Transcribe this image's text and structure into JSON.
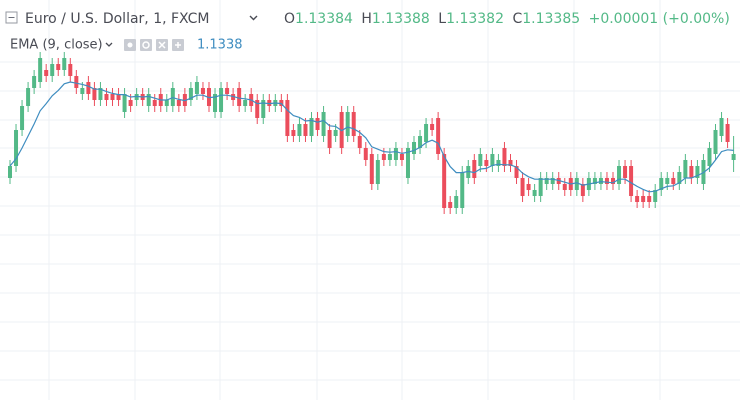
{
  "chart_data": {
    "type": "candlestick",
    "title": "Euro / U.S. Dollar, 1, FXCM",
    "ohlc_labels": [
      "O",
      "H",
      "L",
      "C"
    ],
    "change": "+0.00001 (+0.00%)",
    "up_color": "#53b987",
    "down_color": "#eb4d5c",
    "ylim": [
      1.13344,
      1.13404
    ],
    "open": [
      1.13381,
      1.13383,
      1.13389,
      1.13393,
      1.13396,
      1.13397,
      1.13399,
      1.13398,
      1.134,
      1.13399,
      1.134,
      1.13398,
      1.13395,
      1.13397,
      1.13396,
      1.13394,
      1.13395,
      1.13395,
      1.13395,
      1.13392,
      1.13394,
      1.13394,
      1.13395,
      1.13393,
      1.13394,
      1.13395,
      1.13393,
      1.13393,
      1.13394,
      1.13395,
      1.13394,
      1.13395,
      1.13396,
      1.13396,
      1.13392,
      1.13392,
      1.13396,
      1.13395,
      1.13396,
      1.13393,
      1.13395,
      1.13394,
      1.13391,
      1.13394,
      1.13393,
      1.13394,
      1.13394,
      1.13389,
      1.13388,
      1.1339,
      1.13388,
      1.13391,
      1.13388,
      1.13389,
      1.13388,
      1.13392,
      1.13388,
      1.13392,
      1.13388,
      1.13386,
      1.13385,
      1.1338,
      1.13385,
      1.13384,
      1.13384,
      1.13385,
      1.13381,
      1.13385,
      1.13386,
      1.13387,
      1.1339,
      1.13391,
      1.13385,
      1.13377,
      1.13376,
      1.13376,
      1.13381,
      1.13384,
      1.13383,
      1.13384,
      1.13383,
      1.13383,
      1.13386,
      1.13384,
      1.13383,
      1.13381,
      1.1338,
      1.13378,
      1.13378,
      1.1338,
      1.1338,
      1.13381,
      1.1338,
      1.13381,
      1.13379,
      1.1338,
      1.13379,
      1.1338,
      1.1338,
      1.13381,
      1.13381,
      1.1338,
      1.13383,
      1.13383,
      1.13378,
      1.13378,
      1.13378,
      1.13377,
      1.13379,
      1.1338,
      1.13381,
      1.1338,
      1.13381,
      1.13383,
      1.13381,
      1.1338,
      1.13383,
      1.13385,
      1.13388,
      1.1339,
      1.13384
    ],
    "high": [
      1.13384,
      1.1339,
      1.13394,
      1.13397,
      1.13399,
      1.13402,
      1.134,
      1.13401,
      1.13401,
      1.13402,
      1.13401,
      1.13399,
      1.13397,
      1.13398,
      1.13397,
      1.13397,
      1.13396,
      1.13396,
      1.13396,
      1.13396,
      1.13395,
      1.13396,
      1.13396,
      1.13396,
      1.13395,
      1.13396,
      1.13395,
      1.13397,
      1.13395,
      1.13396,
      1.13397,
      1.13398,
      1.13397,
      1.13397,
      1.13396,
      1.13397,
      1.13397,
      1.13396,
      1.13397,
      1.13395,
      1.13396,
      1.13395,
      1.13395,
      1.13395,
      1.13395,
      1.13395,
      1.13395,
      1.1339,
      1.13391,
      1.13391,
      1.13392,
      1.13392,
      1.13393,
      1.1339,
      1.1339,
      1.13393,
      1.13393,
      1.13393,
      1.13389,
      1.13387,
      1.13386,
      1.13385,
      1.13386,
      1.13386,
      1.13387,
      1.13386,
      1.13387,
      1.13388,
      1.13389,
      1.13391,
      1.13391,
      1.13392,
      1.13386,
      1.13378,
      1.13379,
      1.13383,
      1.13384,
      1.13385,
      1.13386,
      1.13385,
      1.13386,
      1.13385,
      1.13387,
      1.13385,
      1.13384,
      1.13382,
      1.13381,
      1.1338,
      1.13382,
      1.13382,
      1.13382,
      1.13382,
      1.13381,
      1.13382,
      1.13382,
      1.13381,
      1.13382,
      1.13382,
      1.13382,
      1.13382,
      1.13382,
      1.13384,
      1.13384,
      1.13384,
      1.13379,
      1.13379,
      1.13379,
      1.1338,
      1.13382,
      1.13382,
      1.13382,
      1.13383,
      1.13385,
      1.13384,
      1.13384,
      1.13385,
      1.13387,
      1.1339,
      1.13392,
      1.13391,
      1.13388
    ],
    "low": [
      1.1338,
      1.13382,
      1.13388,
      1.13392,
      1.13395,
      1.13396,
      1.13397,
      1.13397,
      1.13398,
      1.13398,
      1.13397,
      1.13395,
      1.13394,
      1.13394,
      1.13393,
      1.13393,
      1.13393,
      1.13393,
      1.13393,
      1.13391,
      1.13392,
      1.13393,
      1.13393,
      1.13392,
      1.13392,
      1.13392,
      1.13392,
      1.13392,
      1.13392,
      1.13392,
      1.13393,
      1.13394,
      1.13394,
      1.13392,
      1.13391,
      1.13391,
      1.13394,
      1.13393,
      1.13392,
      1.13392,
      1.13392,
      1.1339,
      1.1339,
      1.13392,
      1.13392,
      1.13392,
      1.13387,
      1.13387,
      1.13387,
      1.13387,
      1.13387,
      1.13388,
      1.13387,
      1.13385,
      1.13387,
      1.13385,
      1.13387,
      1.13387,
      1.13385,
      1.13383,
      1.13379,
      1.13379,
      1.13383,
      1.13383,
      1.13383,
      1.13383,
      1.1338,
      1.13384,
      1.13385,
      1.13386,
      1.13388,
      1.13384,
      1.13375,
      1.13375,
      1.13375,
      1.13375,
      1.1338,
      1.1338,
      1.13382,
      1.13382,
      1.13382,
      1.13382,
      1.13382,
      1.13382,
      1.1338,
      1.13377,
      1.13378,
      1.13377,
      1.13377,
      1.13379,
      1.13379,
      1.13379,
      1.13378,
      1.13378,
      1.13378,
      1.13377,
      1.13378,
      1.13379,
      1.13379,
      1.13379,
      1.13379,
      1.13379,
      1.1338,
      1.13377,
      1.13376,
      1.13376,
      1.13376,
      1.13376,
      1.13378,
      1.13379,
      1.13379,
      1.13379,
      1.1338,
      1.1338,
      1.1338,
      1.13379,
      1.13382,
      1.13384,
      1.13387,
      1.13386,
      1.13382
    ],
    "close": [
      1.13383,
      1.13389,
      1.13393,
      1.13396,
      1.13398,
      1.13401,
      1.13398,
      1.134,
      1.13399,
      1.13401,
      1.13398,
      1.13396,
      1.13396,
      1.13395,
      1.13394,
      1.13396,
      1.13394,
      1.13394,
      1.13394,
      1.13395,
      1.13393,
      1.13395,
      1.13394,
      1.13395,
      1.13393,
      1.13393,
      1.13394,
      1.13396,
      1.13393,
      1.13393,
      1.13396,
      1.13397,
      1.13395,
      1.13393,
      1.13395,
      1.13396,
      1.13395,
      1.13394,
      1.13393,
      1.13394,
      1.13393,
      1.13391,
      1.13394,
      1.13393,
      1.13394,
      1.13393,
      1.13388,
      1.13388,
      1.1339,
      1.13388,
      1.13391,
      1.13389,
      1.13392,
      1.13386,
      1.13389,
      1.13386,
      1.13392,
      1.13388,
      1.13386,
      1.13384,
      1.1338,
      1.13384,
      1.13384,
      1.13385,
      1.13386,
      1.13384,
      1.13386,
      1.13387,
      1.13388,
      1.1339,
      1.13389,
      1.13385,
      1.13376,
      1.13376,
      1.13378,
      1.13382,
      1.13383,
      1.13381,
      1.13385,
      1.13383,
      1.13385,
      1.13384,
      1.13383,
      1.13383,
      1.13381,
      1.13378,
      1.13379,
      1.13379,
      1.13381,
      1.13381,
      1.13381,
      1.1338,
      1.13379,
      1.13379,
      1.13381,
      1.13378,
      1.13381,
      1.13381,
      1.13381,
      1.1338,
      1.1338,
      1.13383,
      1.13381,
      1.13378,
      1.13377,
      1.13377,
      1.13377,
      1.13379,
      1.13381,
      1.13381,
      1.1338,
      1.13382,
      1.13384,
      1.13381,
      1.13383,
      1.13384,
      1.13386,
      1.13389,
      1.13391,
      1.13387,
      1.13385
    ],
    "ema": {
      "name": "EMA (9, close)",
      "last_label": "1.1338",
      "color": "#3f8dc0",
      "values": [
        1.13383,
        1.133842,
        1.13386,
        1.13388,
        1.1339,
        1.133922,
        1.133934,
        1.133947,
        1.133956,
        1.133967,
        1.13397,
        1.133968,
        1.133966,
        1.133963,
        1.133958,
        1.133958,
        1.133954,
        1.133951,
        1.133949,
        1.133949,
        1.133945,
        1.133946,
        1.133945,
        1.133946,
        1.133943,
        1.13394,
        1.13394,
        1.133944,
        1.133941,
        1.133939,
        1.133943,
        1.133948,
        1.133948,
        1.133944,
        1.133945,
        1.133948,
        1.133948,
        1.133946,
        1.133943,
        1.133942,
        1.13394,
        1.133934,
        1.133935,
        1.133934,
        1.133935,
        1.133934,
        1.133923,
        1.133914,
        1.133911,
        1.133905,
        1.133906,
        1.133903,
        1.133906,
        1.133897,
        1.133896,
        1.133889,
        1.133895,
        1.133892,
        1.133886,
        1.133877,
        1.133862,
        1.133858,
        1.133854,
        1.133853,
        1.133854,
        1.133851,
        1.133853,
        1.133856,
        1.133861,
        1.133869,
        1.133873,
        1.133868,
        1.133846,
        1.133829,
        1.133819,
        1.133819,
        1.133821,
        1.133819,
        1.133825,
        1.133826,
        1.133831,
        1.133833,
        1.133832,
        1.133832,
        1.133828,
        1.133818,
        1.133812,
        1.133808,
        1.133808,
        1.133808,
        1.133808,
        1.133806,
        1.133803,
        1.1338,
        1.133802,
        1.133798,
        1.1338,
        1.133802,
        1.133804,
        1.133803,
        1.133802,
        1.133808,
        1.133808,
        1.133802,
        1.133796,
        1.133791,
        1.133787,
        1.133788,
        1.133792,
        1.133796,
        1.133797,
        1.133802,
        1.13381,
        1.13381,
        1.133814,
        1.133819,
        1.133827,
        1.13384,
        1.133854,
        1.133857,
        1.133856
      ]
    }
  }
}
